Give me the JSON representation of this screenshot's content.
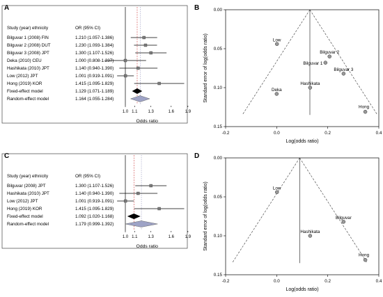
{
  "chart_data": [
    {
      "panel": "A",
      "type": "scatter",
      "subtype": "forest plot",
      "header": {
        "study": "Study (year) ethnicity",
        "ci": "OR (95% CI)"
      },
      "rows": [
        {
          "label": "Bilguvar 1 (2008) FIN",
          "ci_text": "1.210 (1.057-1.386)",
          "or": 1.21,
          "lo": 1.057,
          "hi": 1.386,
          "kind": "study"
        },
        {
          "label": "Bilguvar 2 (2008) DUT",
          "ci_text": "1.230 (1.093-1.384)",
          "or": 1.23,
          "lo": 1.093,
          "hi": 1.384,
          "kind": "study"
        },
        {
          "label": "Bilguvar 3 (2008) JPT",
          "ci_text": "1.300 (1.107-1.526)",
          "or": 1.3,
          "lo": 1.107,
          "hi": 1.526,
          "kind": "study"
        },
        {
          "label": "Deka (2010) CEU",
          "ci_text": "1.000 (0.808-1.237)",
          "or": 1.0,
          "lo": 0.808,
          "hi": 1.237,
          "kind": "study"
        },
        {
          "label": "Hashikata (2010) JPT",
          "ci_text": "1.140 (0.940-1.390)",
          "or": 1.14,
          "lo": 0.94,
          "hi": 1.39,
          "kind": "study"
        },
        {
          "label": "Low (2012) JPT",
          "ci_text": "1.001 (0.919-1.091)",
          "or": 1.001,
          "lo": 0.919,
          "hi": 1.091,
          "kind": "study"
        },
        {
          "label": "Hong (2019) KOR",
          "ci_text": "1.415 (1.095-1.829)",
          "or": 1.415,
          "lo": 1.095,
          "hi": 1.829,
          "kind": "study"
        },
        {
          "label": "Fixed-effect model",
          "ci_text": "1.129 (1.071-1.189)",
          "or": 1.129,
          "lo": 1.071,
          "hi": 1.189,
          "kind": "fixed"
        },
        {
          "label": "Random-effect model",
          "ci_text": "1.164 (1.055-1.284)",
          "or": 1.164,
          "lo": 1.055,
          "hi": 1.284,
          "kind": "random"
        }
      ],
      "xticks": [
        "1.0",
        "1.1",
        "1.3",
        "1.6",
        "1.9"
      ],
      "xlabel": "Odds ratio"
    },
    {
      "panel": "B",
      "type": "scatter",
      "subtype": "funnel plot",
      "xlabel": "Log(odds ratio)",
      "ylabel": "Standard error of log(odds ratio)",
      "xlim": [
        -0.2,
        0.4
      ],
      "ylim": [
        0.15,
        0.0
      ],
      "xticks": [
        "-0.2",
        "0.0",
        "0.2",
        "0.4"
      ],
      "yticks": [
        "0.00",
        "0.05",
        "0.10",
        "0.15"
      ],
      "pooled": 0.13,
      "points": [
        {
          "label": "Low",
          "x": 0.001,
          "y": 0.044
        },
        {
          "label": "Bilguvar 2",
          "x": 0.207,
          "y": 0.06
        },
        {
          "label": "Bilguvar 1",
          "x": 0.191,
          "y": 0.068
        },
        {
          "label": "Bilguvar 3",
          "x": 0.262,
          "y": 0.082
        },
        {
          "label": "Hashikata",
          "x": 0.131,
          "y": 0.1
        },
        {
          "label": "Deka",
          "x": 0.0,
          "y": 0.108
        },
        {
          "label": "Hong",
          "x": 0.347,
          "y": 0.131
        }
      ]
    },
    {
      "panel": "C",
      "type": "scatter",
      "subtype": "forest plot",
      "header": {
        "study": "Study (year) ethnicity",
        "ci": "OR (95% CI)"
      },
      "rows": [
        {
          "label": "Bilguvar (2008) JPT",
          "ci_text": "1.300 (1.107-1.526)",
          "or": 1.3,
          "lo": 1.107,
          "hi": 1.526,
          "kind": "study"
        },
        {
          "label": "Hashikata (2010) JPT",
          "ci_text": "1.140 (0.940-1.390)",
          "or": 1.14,
          "lo": 0.94,
          "hi": 1.39,
          "kind": "study"
        },
        {
          "label": "Low (2012) JPT",
          "ci_text": "1.001 (0.919-1.091)",
          "or": 1.001,
          "lo": 0.919,
          "hi": 1.091,
          "kind": "study"
        },
        {
          "label": "Hong (2019) KOR",
          "ci_text": "1.415 (1.095-1.829)",
          "or": 1.415,
          "lo": 1.095,
          "hi": 1.829,
          "kind": "study"
        },
        {
          "label": "Fixed-effect model",
          "ci_text": "1.092 (1.020-1.168)",
          "or": 1.092,
          "lo": 1.02,
          "hi": 1.168,
          "kind": "fixed"
        },
        {
          "label": "Random-effect model",
          "ci_text": "1.179 (0.999-1.392)",
          "or": 1.179,
          "lo": 0.999,
          "hi": 1.392,
          "kind": "random"
        }
      ],
      "xticks": [
        "1.0",
        "1.1",
        "1.3",
        "1.6",
        "1.9"
      ],
      "xlabel": "Odds ratio"
    },
    {
      "panel": "D",
      "type": "scatter",
      "subtype": "funnel plot",
      "xlabel": "Log(odds ratio)",
      "ylabel": "Standard error of log(odds ratio)",
      "xlim": [
        -0.2,
        0.4
      ],
      "ylim": [
        0.15,
        0.0
      ],
      "xticks": [
        "-0.2",
        "0.0",
        "0.2",
        "0.4"
      ],
      "yticks": [
        "0.00",
        "0.05",
        "0.10",
        "0.15"
      ],
      "pooled": 0.09,
      "points": [
        {
          "label": "Low",
          "x": 0.001,
          "y": 0.044
        },
        {
          "label": "Bilguvar",
          "x": 0.262,
          "y": 0.082
        },
        {
          "label": "Hashikata",
          "x": 0.131,
          "y": 0.1
        },
        {
          "label": "Hong",
          "x": 0.347,
          "y": 0.131
        }
      ]
    }
  ]
}
